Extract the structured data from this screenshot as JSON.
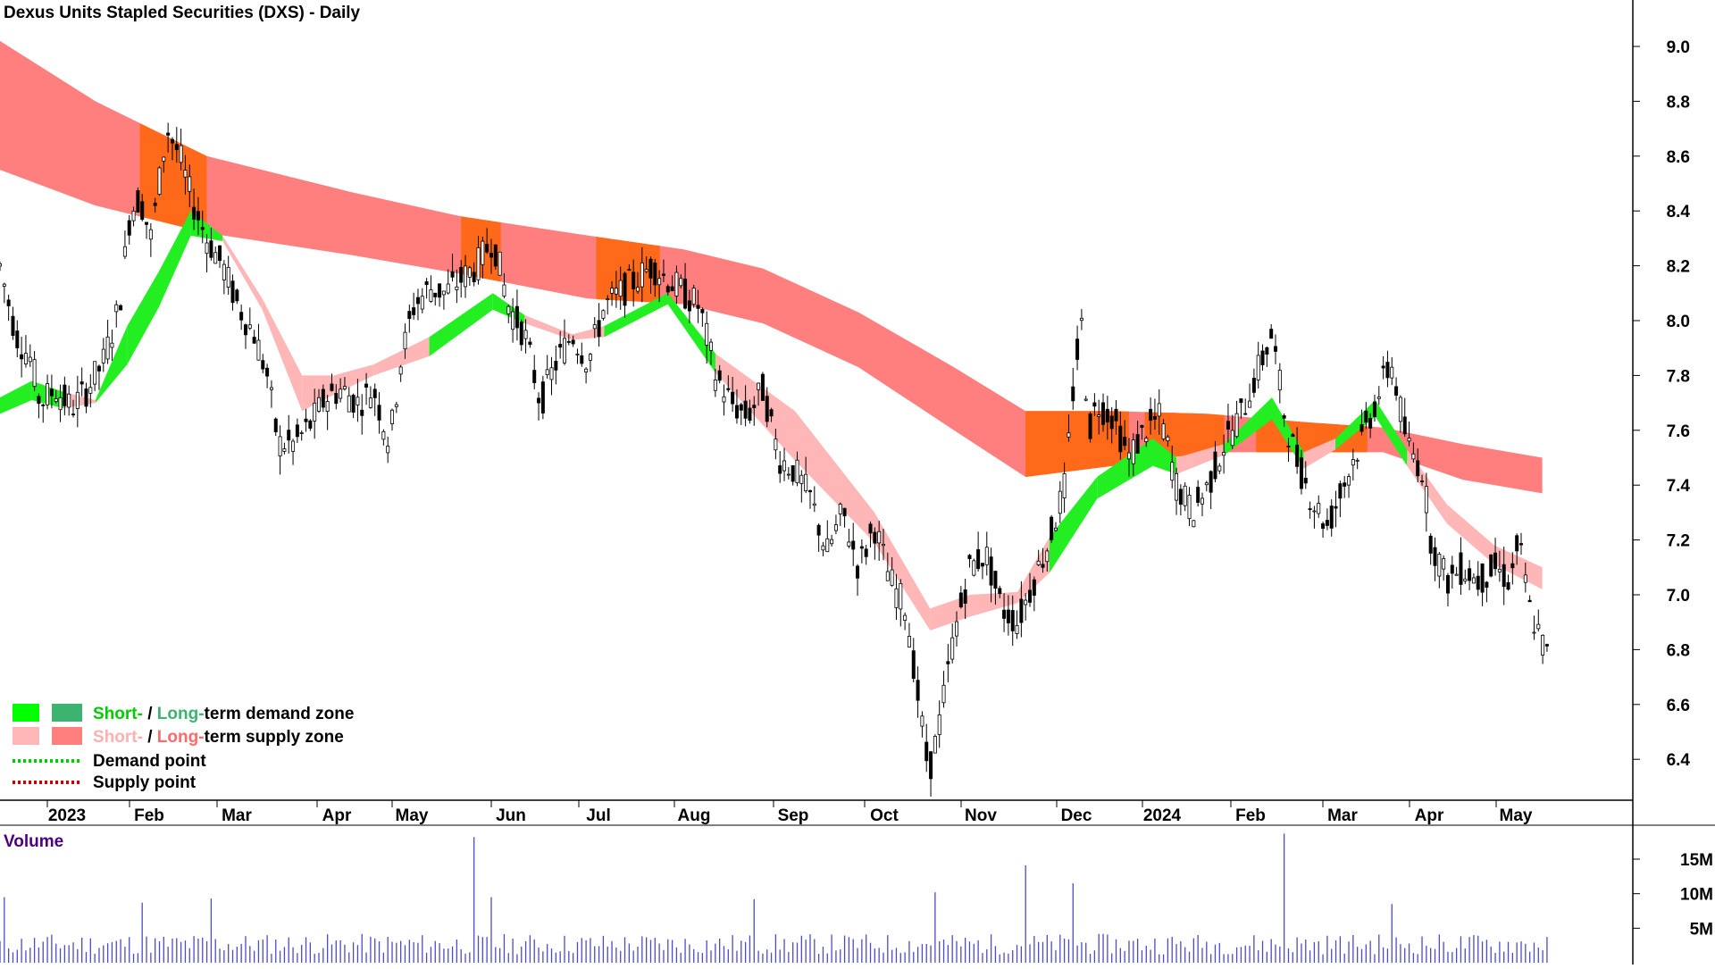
{
  "chart_data": {
    "type": "candlestick",
    "title": "Dexus Units Stapled Securities (DXS) - Daily",
    "y_axis": {
      "side": "right",
      "range": [
        6.2,
        9.15
      ],
      "ticks": [
        9.0,
        8.8,
        8.6,
        8.4,
        8.2,
        8.0,
        7.8,
        7.6,
        7.4,
        7.2,
        7.0,
        6.8,
        6.6,
        6.4
      ]
    },
    "x_axis": {
      "labels": [
        "2023",
        "Feb",
        "Mar",
        "Apr",
        "May",
        "Jun",
        "Jul",
        "Aug",
        "Sep",
        "Oct",
        "Nov",
        "Dec",
        "2024",
        "Feb",
        "Mar",
        "Apr",
        "May"
      ]
    },
    "grid": false,
    "legend": {
      "placement": "bottom-left",
      "entries": [
        {
          "short": "Short-",
          "sep": " / ",
          "long": "Long-",
          "rest": "term demand zone",
          "colors": [
            "#00ff00",
            "#3cb371"
          ],
          "short_text_color": "#00cc00",
          "long_text_color": "#3cb371"
        },
        {
          "short": "Short-",
          "sep": " / ",
          "long": "Long-",
          "rest": "term supply zone",
          "colors": [
            "#ffb6b6",
            "#ff7f7f"
          ],
          "short_text_color": "#ffb0b0",
          "long_text_color": "#ff6a6a"
        },
        {
          "label": "Demand point",
          "color": "#00cc00",
          "style": "dotted"
        },
        {
          "label": "Supply point",
          "color": "#cc0000",
          "style": "dotted"
        }
      ]
    },
    "long_term_zone": {
      "points": [
        {
          "x": 0,
          "upper": 9.02,
          "lower": 8.55
        },
        {
          "x": 0.06,
          "upper": 8.8,
          "lower": 8.42
        },
        {
          "x": 0.13,
          "upper": 8.6,
          "lower": 8.32
        },
        {
          "x": 0.22,
          "upper": 8.47,
          "lower": 8.24
        },
        {
          "x": 0.29,
          "upper": 8.38,
          "lower": 8.17
        },
        {
          "x": 0.37,
          "upper": 8.31,
          "lower": 8.08
        },
        {
          "x": 0.43,
          "upper": 8.26,
          "lower": 8.06
        },
        {
          "x": 0.48,
          "upper": 8.19,
          "lower": 7.99
        },
        {
          "x": 0.54,
          "upper": 8.03,
          "lower": 7.83
        },
        {
          "x": 0.6,
          "upper": 7.83,
          "lower": 7.6
        },
        {
          "x": 0.645,
          "upper": 7.67,
          "lower": 7.43
        },
        {
          "x": 0.7,
          "upper": 7.67,
          "lower": 7.47
        },
        {
          "x": 0.76,
          "upper": 7.66,
          "lower": 7.52
        },
        {
          "x": 0.82,
          "upper": 7.63,
          "lower": 7.52
        },
        {
          "x": 0.87,
          "upper": 7.61,
          "lower": 7.52
        },
        {
          "x": 0.92,
          "upper": 7.55,
          "lower": 7.42
        },
        {
          "x": 0.97,
          "upper": 7.5,
          "lower": 7.37
        }
      ],
      "orange_overlap": [
        [
          0.088,
          0.13
        ],
        [
          0.29,
          0.315
        ],
        [
          0.375,
          0.415
        ],
        [
          0.645,
          0.71
        ],
        [
          0.72,
          0.77
        ],
        [
          0.79,
          0.86
        ]
      ]
    },
    "short_term_zone": {
      "points": [
        {
          "x": 0,
          "upper": 7.72,
          "lower": 7.67,
          "zone": "demand"
        },
        {
          "x": 0.02,
          "upper": 7.78,
          "lower": 7.72,
          "zone": "demand"
        },
        {
          "x": 0.04,
          "upper": 7.74,
          "lower": 7.69,
          "zone": "supply"
        },
        {
          "x": 0.06,
          "upper": 7.71,
          "lower": 7.71,
          "zone": "demand"
        },
        {
          "x": 0.08,
          "upper": 7.98,
          "lower": 7.85,
          "zone": "demand"
        },
        {
          "x": 0.1,
          "upper": 8.18,
          "lower": 8.06,
          "zone": "demand"
        },
        {
          "x": 0.12,
          "upper": 8.4,
          "lower": 8.32,
          "zone": "demand"
        },
        {
          "x": 0.14,
          "upper": 8.31,
          "lower": 8.3,
          "zone": "supply"
        },
        {
          "x": 0.165,
          "upper": 8.08,
          "lower": 8.05,
          "zone": "supply"
        },
        {
          "x": 0.19,
          "upper": 7.8,
          "lower": 7.68,
          "zone": "supply"
        },
        {
          "x": 0.21,
          "upper": 7.8,
          "lower": 7.74,
          "zone": "supply"
        },
        {
          "x": 0.235,
          "upper": 7.84,
          "lower": 7.81,
          "zone": "supply"
        },
        {
          "x": 0.27,
          "upper": 7.94,
          "lower": 7.88,
          "zone": "demand"
        },
        {
          "x": 0.31,
          "upper": 8.1,
          "lower": 8.05,
          "zone": "demand"
        },
        {
          "x": 0.33,
          "upper": 8.02,
          "lower": 8.0,
          "zone": "supply"
        },
        {
          "x": 0.36,
          "upper": 7.95,
          "lower": 7.94,
          "zone": "supply"
        },
        {
          "x": 0.38,
          "upper": 7.98,
          "lower": 7.95,
          "zone": "demand"
        },
        {
          "x": 0.42,
          "upper": 8.1,
          "lower": 8.07,
          "zone": "demand"
        },
        {
          "x": 0.45,
          "upper": 7.88,
          "lower": 7.82,
          "zone": "supply"
        },
        {
          "x": 0.5,
          "upper": 7.67,
          "lower": 7.5,
          "zone": "supply"
        },
        {
          "x": 0.55,
          "upper": 7.3,
          "lower": 7.2,
          "zone": "supply"
        },
        {
          "x": 0.585,
          "upper": 6.95,
          "lower": 6.88,
          "zone": "supply"
        },
        {
          "x": 0.61,
          "upper": 7.0,
          "lower": 6.93,
          "zone": "supply"
        },
        {
          "x": 0.64,
          "upper": 7.01,
          "lower": 6.98,
          "zone": "supply"
        },
        {
          "x": 0.66,
          "upper": 7.21,
          "lower": 7.09,
          "zone": "demand"
        },
        {
          "x": 0.69,
          "upper": 7.43,
          "lower": 7.36,
          "zone": "demand"
        },
        {
          "x": 0.725,
          "upper": 7.57,
          "lower": 7.48,
          "zone": "demand"
        },
        {
          "x": 0.74,
          "upper": 7.5,
          "lower": 7.45,
          "zone": "supply"
        },
        {
          "x": 0.77,
          "upper": 7.55,
          "lower": 7.52,
          "zone": "demand"
        },
        {
          "x": 0.8,
          "upper": 7.72,
          "lower": 7.65,
          "zone": "demand"
        },
        {
          "x": 0.82,
          "upper": 7.52,
          "lower": 7.47,
          "zone": "supply"
        },
        {
          "x": 0.84,
          "upper": 7.57,
          "lower": 7.54,
          "zone": "demand"
        },
        {
          "x": 0.865,
          "upper": 7.71,
          "lower": 7.66,
          "zone": "demand"
        },
        {
          "x": 0.885,
          "upper": 7.53,
          "lower": 7.48,
          "zone": "supply"
        },
        {
          "x": 0.91,
          "upper": 7.33,
          "lower": 7.27,
          "zone": "supply"
        },
        {
          "x": 0.94,
          "upper": 7.18,
          "lower": 7.12,
          "zone": "supply"
        },
        {
          "x": 0.97,
          "upper": 7.1,
          "lower": 7.03,
          "zone": "supply"
        }
      ]
    },
    "price_path": [
      {
        "x": 0.0,
        "close": 8.2
      },
      {
        "x": 0.01,
        "close": 7.95
      },
      {
        "x": 0.02,
        "close": 7.85
      },
      {
        "x": 0.025,
        "close": 7.7
      },
      {
        "x": 0.035,
        "close": 7.75
      },
      {
        "x": 0.045,
        "close": 7.68
      },
      {
        "x": 0.055,
        "close": 7.75
      },
      {
        "x": 0.065,
        "close": 7.85
      },
      {
        "x": 0.075,
        "close": 8.05
      },
      {
        "x": 0.082,
        "close": 8.4
      },
      {
        "x": 0.088,
        "close": 8.45
      },
      {
        "x": 0.095,
        "close": 8.3
      },
      {
        "x": 0.105,
        "close": 8.7
      },
      {
        "x": 0.113,
        "close": 8.6
      },
      {
        "x": 0.12,
        "close": 8.45
      },
      {
        "x": 0.13,
        "close": 8.3
      },
      {
        "x": 0.14,
        "close": 8.2
      },
      {
        "x": 0.15,
        "close": 8.05
      },
      {
        "x": 0.16,
        "close": 7.95
      },
      {
        "x": 0.168,
        "close": 7.8
      },
      {
        "x": 0.175,
        "close": 7.55
      },
      {
        "x": 0.185,
        "close": 7.55
      },
      {
        "x": 0.195,
        "close": 7.62
      },
      {
        "x": 0.205,
        "close": 7.72
      },
      {
        "x": 0.215,
        "close": 7.75
      },
      {
        "x": 0.225,
        "close": 7.7
      },
      {
        "x": 0.235,
        "close": 7.75
      },
      {
        "x": 0.245,
        "close": 7.55
      },
      {
        "x": 0.252,
        "close": 7.85
      },
      {
        "x": 0.26,
        "close": 8.05
      },
      {
        "x": 0.27,
        "close": 8.12
      },
      {
        "x": 0.28,
        "close": 8.1
      },
      {
        "x": 0.29,
        "close": 8.15
      },
      {
        "x": 0.3,
        "close": 8.2
      },
      {
        "x": 0.31,
        "close": 8.3
      },
      {
        "x": 0.32,
        "close": 8.05
      },
      {
        "x": 0.33,
        "close": 7.95
      },
      {
        "x": 0.34,
        "close": 7.7
      },
      {
        "x": 0.35,
        "close": 7.85
      },
      {
        "x": 0.36,
        "close": 7.95
      },
      {
        "x": 0.37,
        "close": 7.85
      },
      {
        "x": 0.38,
        "close": 8.05
      },
      {
        "x": 0.39,
        "close": 8.1
      },
      {
        "x": 0.4,
        "close": 8.15
      },
      {
        "x": 0.41,
        "close": 8.2
      },
      {
        "x": 0.42,
        "close": 8.15
      },
      {
        "x": 0.43,
        "close": 8.1
      },
      {
        "x": 0.44,
        "close": 8.05
      },
      {
        "x": 0.45,
        "close": 7.8
      },
      {
        "x": 0.46,
        "close": 7.7
      },
      {
        "x": 0.47,
        "close": 7.65
      },
      {
        "x": 0.48,
        "close": 7.75
      },
      {
        "x": 0.49,
        "close": 7.5
      },
      {
        "x": 0.5,
        "close": 7.45
      },
      {
        "x": 0.51,
        "close": 7.35
      },
      {
        "x": 0.52,
        "close": 7.15
      },
      {
        "x": 0.53,
        "close": 7.3
      },
      {
        "x": 0.54,
        "close": 7.1
      },
      {
        "x": 0.55,
        "close": 7.25
      },
      {
        "x": 0.56,
        "close": 7.05
      },
      {
        "x": 0.57,
        "close": 6.95
      },
      {
        "x": 0.578,
        "close": 6.6
      },
      {
        "x": 0.584,
        "close": 6.35
      },
      {
        "x": 0.59,
        "close": 6.5
      },
      {
        "x": 0.6,
        "close": 6.85
      },
      {
        "x": 0.61,
        "close": 7.1
      },
      {
        "x": 0.62,
        "close": 7.15
      },
      {
        "x": 0.63,
        "close": 6.95
      },
      {
        "x": 0.64,
        "close": 6.9
      },
      {
        "x": 0.65,
        "close": 7.05
      },
      {
        "x": 0.66,
        "close": 7.2
      },
      {
        "x": 0.67,
        "close": 7.4
      },
      {
        "x": 0.675,
        "close": 7.75
      },
      {
        "x": 0.68,
        "close": 8.0
      },
      {
        "x": 0.685,
        "close": 7.6
      },
      {
        "x": 0.69,
        "close": 7.7
      },
      {
        "x": 0.7,
        "close": 7.65
      },
      {
        "x": 0.71,
        "close": 7.5
      },
      {
        "x": 0.72,
        "close": 7.6
      },
      {
        "x": 0.73,
        "close": 7.65
      },
      {
        "x": 0.74,
        "close": 7.4
      },
      {
        "x": 0.75,
        "close": 7.3
      },
      {
        "x": 0.76,
        "close": 7.4
      },
      {
        "x": 0.77,
        "close": 7.55
      },
      {
        "x": 0.78,
        "close": 7.65
      },
      {
        "x": 0.79,
        "close": 7.8
      },
      {
        "x": 0.8,
        "close": 7.95
      },
      {
        "x": 0.808,
        "close": 7.65
      },
      {
        "x": 0.815,
        "close": 7.5
      },
      {
        "x": 0.825,
        "close": 7.35
      },
      {
        "x": 0.835,
        "close": 7.25
      },
      {
        "x": 0.845,
        "close": 7.4
      },
      {
        "x": 0.855,
        "close": 7.55
      },
      {
        "x": 0.865,
        "close": 7.7
      },
      {
        "x": 0.875,
        "close": 7.85
      },
      {
        "x": 0.885,
        "close": 7.55
      },
      {
        "x": 0.895,
        "close": 7.45
      },
      {
        "x": 0.9,
        "close": 7.2
      },
      {
        "x": 0.91,
        "close": 7.05
      },
      {
        "x": 0.92,
        "close": 7.1
      },
      {
        "x": 0.93,
        "close": 7.05
      },
      {
        "x": 0.94,
        "close": 7.1
      },
      {
        "x": 0.95,
        "close": 7.05
      },
      {
        "x": 0.955,
        "close": 7.2
      },
      {
        "x": 0.962,
        "close": 6.95
      },
      {
        "x": 0.968,
        "close": 6.85
      },
      {
        "x": 0.973,
        "close": 6.78
      }
    ],
    "volume": {
      "label": "Volume",
      "ticks": [
        {
          "label": "15M",
          "value": 15000000
        },
        {
          "label": "10M",
          "value": 10000000
        },
        {
          "label": "5M",
          "value": 5000000
        }
      ],
      "range": [
        0,
        19000000
      ],
      "spikes": [
        {
          "x": 0.004,
          "value": 9.5
        },
        {
          "x": 0.09,
          "value": 8.7
        },
        {
          "x": 0.133,
          "value": 9.3
        },
        {
          "x": 0.299,
          "value": 18.2
        },
        {
          "x": 0.31,
          "value": 9.5
        },
        {
          "x": 0.473,
          "value": 9.2
        },
        {
          "x": 0.587,
          "value": 10.2
        },
        {
          "x": 0.646,
          "value": 14.1
        },
        {
          "x": 0.674,
          "value": 11.5
        },
        {
          "x": 0.807,
          "value": 18.7
        },
        {
          "x": 0.876,
          "value": 8.5
        }
      ]
    }
  }
}
